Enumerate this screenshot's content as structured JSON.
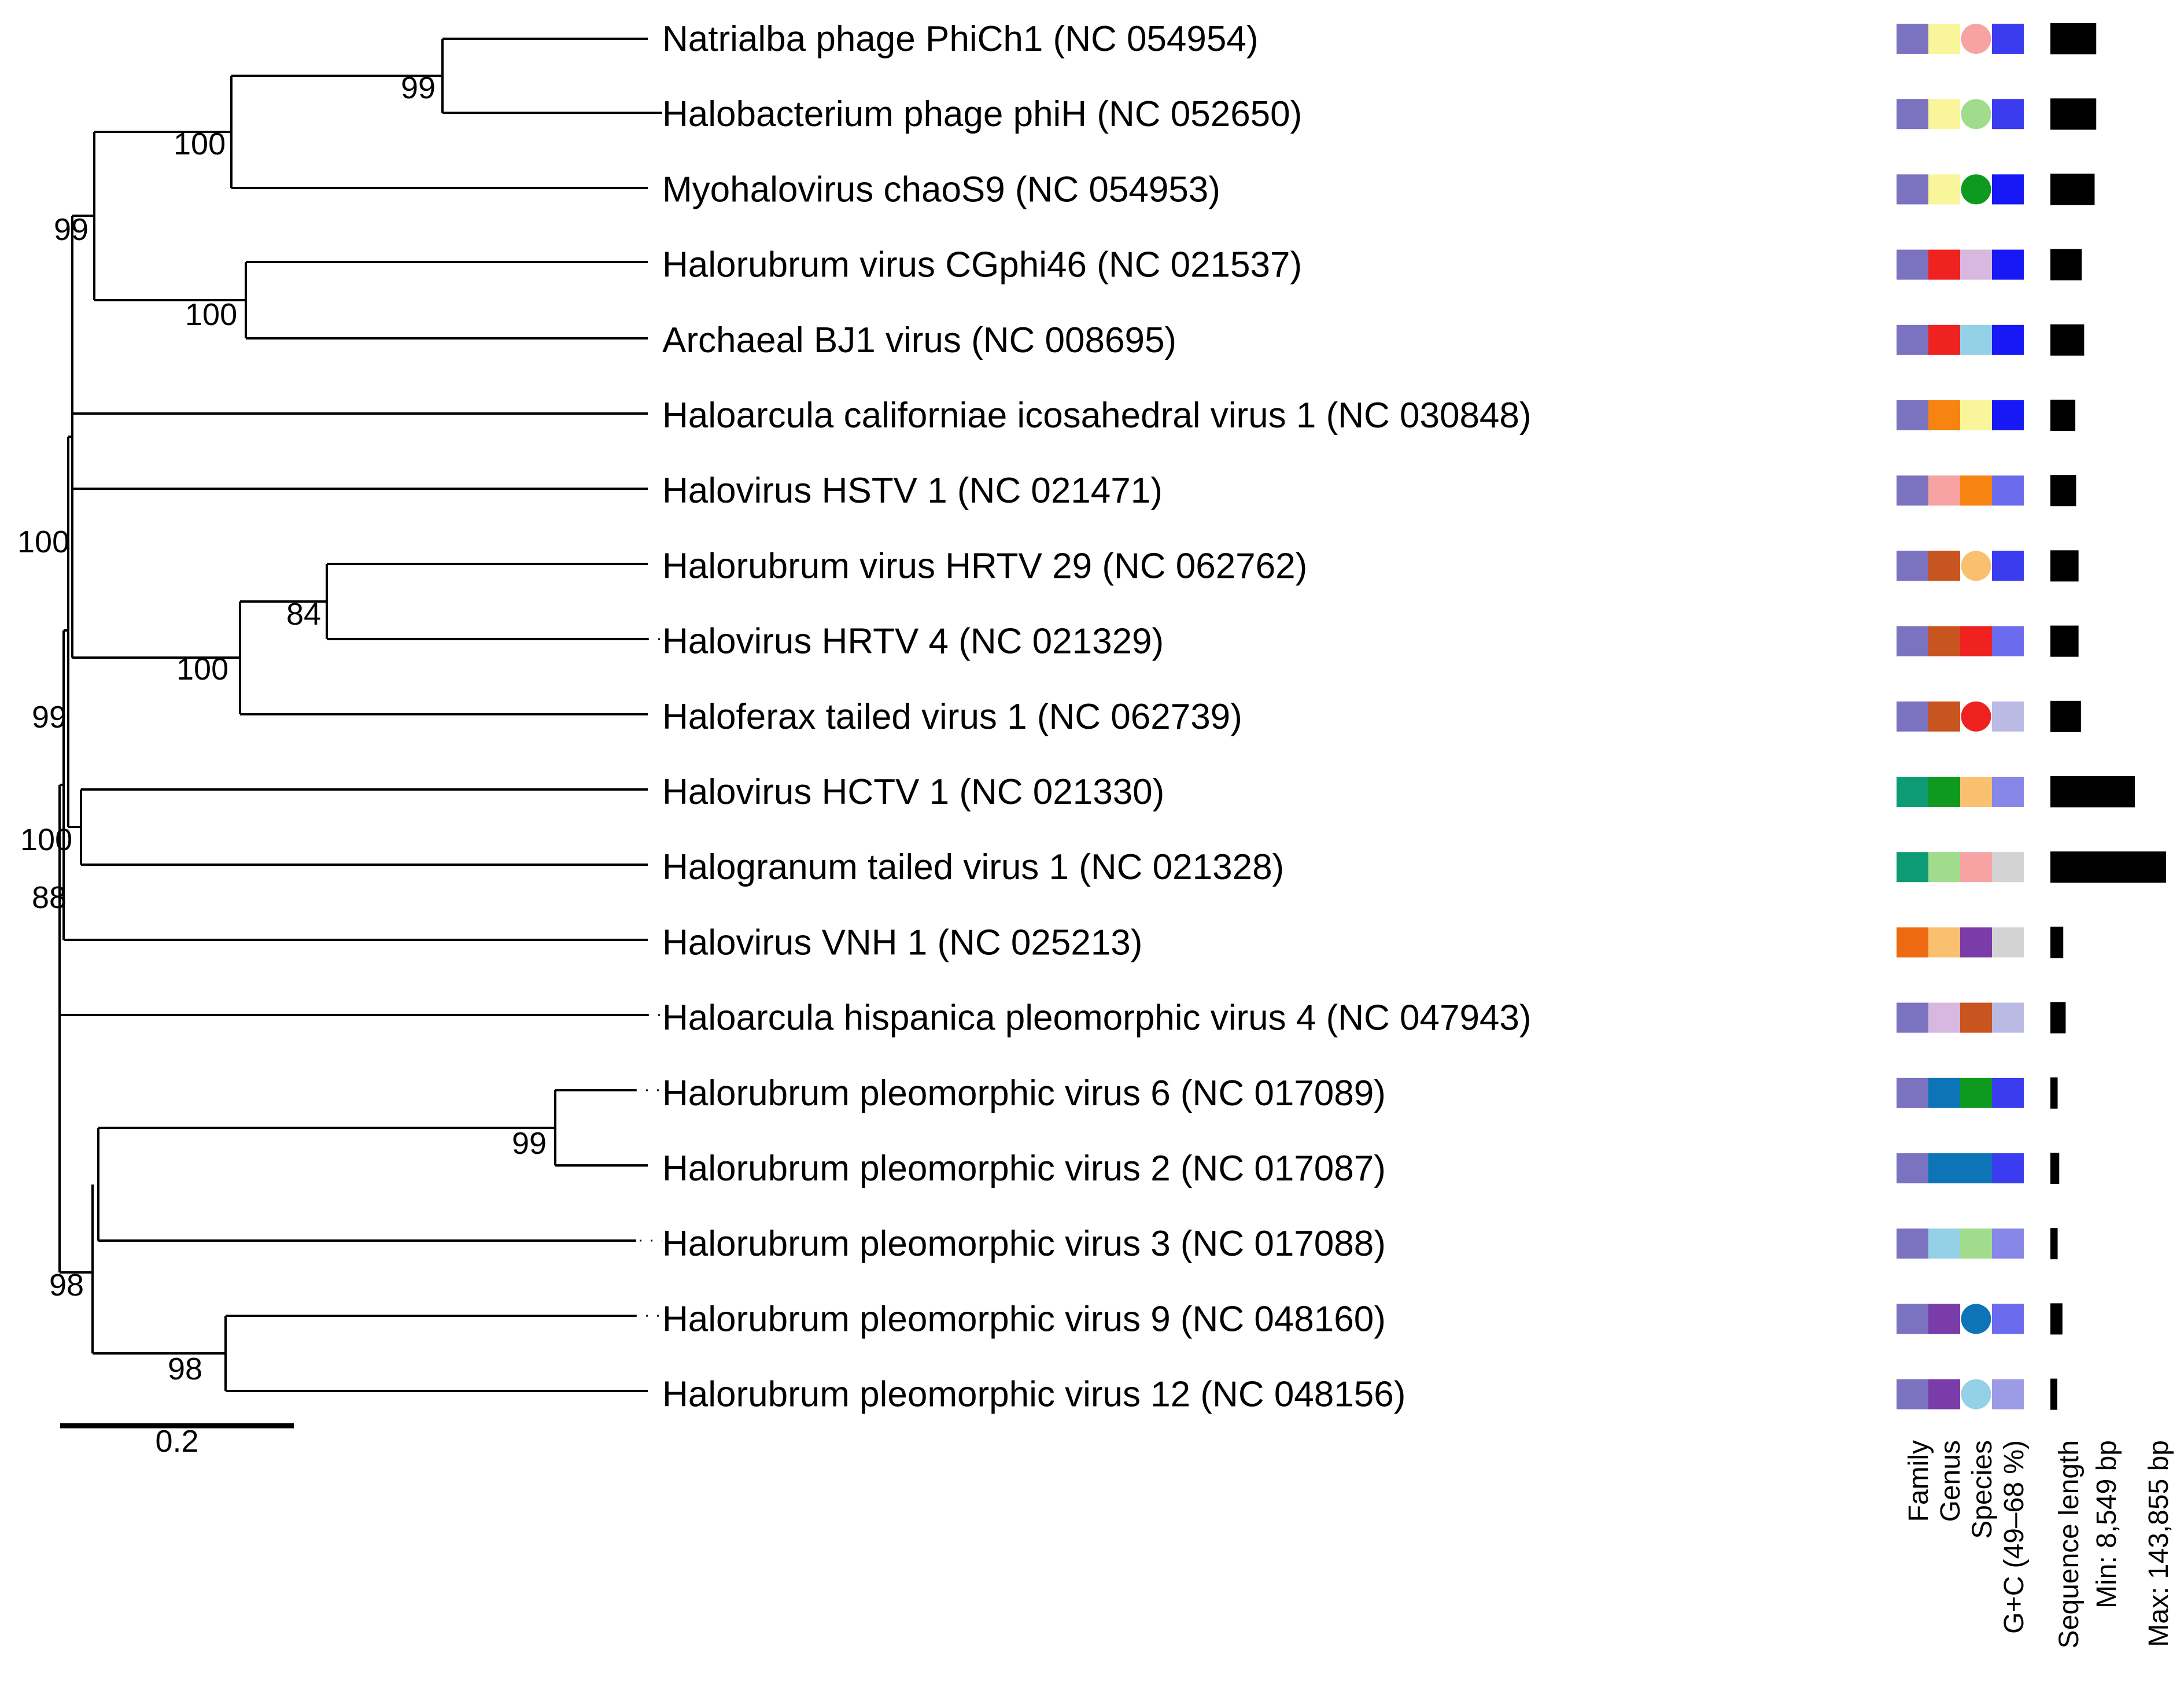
{
  "taxa": [
    {
      "label": "Natrialba phage PhiCh1 (NC 054954)",
      "family": "#7b72c0",
      "genus": "#f9f59a",
      "species": {
        "color": "#f7a3a3",
        "shape": "circle"
      },
      "gc": "#3b3bef",
      "length_bp": 57000
    },
    {
      "label": "Halobacterium phage phiH (NC 052650)",
      "family": "#7b72c0",
      "genus": "#f9f59a",
      "species": {
        "color": "#a0dc8c",
        "shape": "circle"
      },
      "gc": "#3b3bef",
      "length_bp": 57000
    },
    {
      "label": "Myohalovirus chaoS9 (NC 054953)",
      "family": "#7b72c0",
      "genus": "#f9f59a",
      "species": {
        "color": "#0e9a1e",
        "shape": "circle"
      },
      "gc": "#1818f6",
      "length_bp": 55000
    },
    {
      "label": "Halorubrum virus CGphi46 (NC 021537)",
      "family": "#7b72c0",
      "genus": "#ef2121",
      "species": {
        "color": "#d8b8de",
        "shape": "square"
      },
      "gc": "#1818f6",
      "length_bp": 39000
    },
    {
      "label": "Archaeal BJ1 virus (NC 008695)",
      "family": "#7b72c0",
      "genus": "#ef2121",
      "species": {
        "color": "#94d0e6",
        "shape": "square"
      },
      "gc": "#1818f6",
      "length_bp": 42000
    },
    {
      "label": "Haloarcula californiae icosahedral virus 1 (NC 030848)",
      "family": "#7b72c0",
      "genus": "#f78410",
      "species": {
        "color": "#f9f59a",
        "shape": "square"
      },
      "gc": "#1818f6",
      "length_bp": 31000
    },
    {
      "label": "Halovirus HSTV 1 (NC 021471)",
      "family": "#7b72c0",
      "genus": "#f7a3a3",
      "species": {
        "color": "#f78410",
        "shape": "square"
      },
      "gc": "#6b6bee",
      "length_bp": 32000
    },
    {
      "label": "Halorubrum virus HRTV 29 (NC 062762)",
      "family": "#7b72c0",
      "genus": "#c8541f",
      "species": {
        "color": "#f9c06f",
        "shape": "circle"
      },
      "gc": "#3b3bef",
      "length_bp": 35000
    },
    {
      "label": "Halovirus HRTV 4 (NC 021329)",
      "family": "#7b72c0",
      "genus": "#c8541f",
      "species": {
        "color": "#ef2121",
        "shape": "square"
      },
      "gc": "#6b6bee",
      "length_bp": 35000
    },
    {
      "label": "Haloferax tailed virus 1 (NC 062739)",
      "family": "#7b72c0",
      "genus": "#c8541f",
      "species": {
        "color": "#ef2121",
        "shape": "circle"
      },
      "gc": "#babae4",
      "length_bp": 38000
    },
    {
      "label": "Halovirus HCTV 1 (NC 021330)",
      "family": "#0d9b76",
      "genus": "#0e9a1e",
      "species": {
        "color": "#f9c06f",
        "shape": "square"
      },
      "gc": "#8787e8",
      "length_bp": 105000
    },
    {
      "label": "Halogranum tailed virus 1 (NC 021328)",
      "family": "#0d9b76",
      "genus": "#a0dc8c",
      "species": {
        "color": "#f7a3a3",
        "shape": "square"
      },
      "gc": "#d3d3d3",
      "length_bp": 143855
    },
    {
      "label": "Halovirus VNH 1 (NC 025213)",
      "family": "#ee6a12",
      "genus": "#f9c06f",
      "species": {
        "color": "#7a3ca8",
        "shape": "square"
      },
      "gc": "#d3d3d3",
      "length_bp": 16000
    },
    {
      "label": "Haloarcula hispanica pleomorphic virus 4 (NC 047943)",
      "family": "#7b72c0",
      "genus": "#d8b8de",
      "species": {
        "color": "#c8541f",
        "shape": "square"
      },
      "gc": "#babae4",
      "length_bp": 19000
    },
    {
      "label": "Halorubrum pleomorphic virus 6 (NC 017089)",
      "family": "#7b72c0",
      "genus": "#0d74b8",
      "species": {
        "color": "#0e9a1e",
        "shape": "square"
      },
      "gc": "#3b3bef",
      "length_bp": 9000
    },
    {
      "label": "Halorubrum pleomorphic virus 2 (NC 017087)",
      "family": "#7b72c0",
      "genus": "#0d74b8",
      "species": {
        "color": "#0d74b8",
        "shape": "square"
      },
      "gc": "#3b3bef",
      "length_bp": 11000
    },
    {
      "label": "Halorubrum pleomorphic virus 3 (NC 017088)",
      "family": "#7b72c0",
      "genus": "#94d0e6",
      "species": {
        "color": "#a0dc8c",
        "shape": "square"
      },
      "gc": "#8787e8",
      "length_bp": 9000
    },
    {
      "label": "Halorubrum pleomorphic virus 9 (NC 048160)",
      "family": "#7b72c0",
      "genus": "#7a3ca8",
      "species": {
        "color": "#0d74b8",
        "shape": "circle"
      },
      "gc": "#6b6bee",
      "length_bp": 15000
    },
    {
      "label": "Halorubrum pleomorphic virus 12 (NC 048156)",
      "family": "#7b72c0",
      "genus": "#7a3ca8",
      "species": {
        "color": "#94d0e6",
        "shape": "circle"
      },
      "gc": "#9b9be6",
      "length_bp": 8549
    }
  ],
  "bootstrap_values": [
    "99",
    "100",
    "99",
    "100",
    "84",
    "100",
    "100",
    "99",
    "88",
    "100",
    "99",
    "98"
  ],
  "scale_bar": {
    "label": "0.2"
  },
  "columns": {
    "family": "Family",
    "genus": "Genus",
    "species": "Species",
    "gc": "G+C (49–68 %)",
    "length": "Sequence length",
    "min": "Min: 8,549 bp",
    "max": "Max: 143,855 bp"
  },
  "length_range_bp": [
    8549,
    143855
  ],
  "colors": {
    "line": "#000000",
    "bar": "#000000"
  }
}
